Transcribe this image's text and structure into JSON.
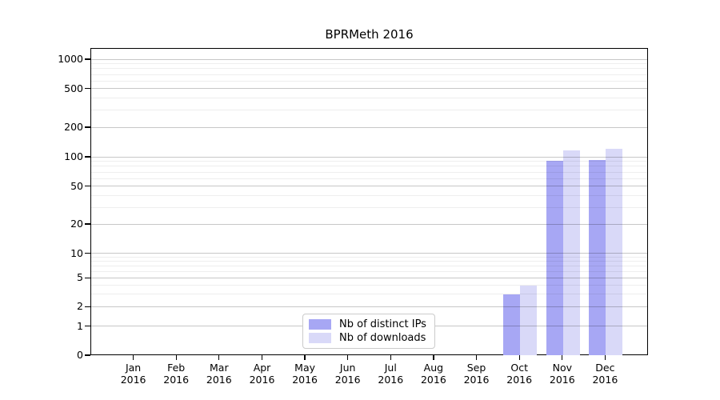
{
  "chart_data": {
    "type": "bar",
    "title": "BPRMeth 2016",
    "x_tick_labels": [
      {
        "line1": "Jan",
        "line2": "2016"
      },
      {
        "line1": "Feb",
        "line2": "2016"
      },
      {
        "line1": "Mar",
        "line2": "2016"
      },
      {
        "line1": "Apr",
        "line2": "2016"
      },
      {
        "line1": "May",
        "line2": "2016"
      },
      {
        "line1": "Jun",
        "line2": "2016"
      },
      {
        "line1": "Jul",
        "line2": "2016"
      },
      {
        "line1": "Aug",
        "line2": "2016"
      },
      {
        "line1": "Sep",
        "line2": "2016"
      },
      {
        "line1": "Oct",
        "line2": "2016"
      },
      {
        "line1": "Nov",
        "line2": "2016"
      },
      {
        "line1": "Dec",
        "line2": "2016"
      }
    ],
    "y_scale": "log",
    "y_ticks": [
      0,
      1,
      2,
      5,
      10,
      20,
      50,
      100,
      200,
      500,
      1000
    ],
    "ylim": [
      0,
      1300
    ],
    "grid": "major+minor",
    "legend_position": "lower center",
    "series": [
      {
        "name": "Nb of distinct IPs",
        "color": "#a7a7f4",
        "values": [
          0,
          0,
          0,
          0,
          0,
          0,
          0,
          0,
          0,
          3,
          93,
          94
        ]
      },
      {
        "name": "Nb of downloads",
        "color": "#d9d9f8",
        "values": [
          0,
          0,
          0,
          0,
          0,
          0,
          0,
          0,
          0,
          4,
          118,
          124
        ]
      }
    ]
  }
}
